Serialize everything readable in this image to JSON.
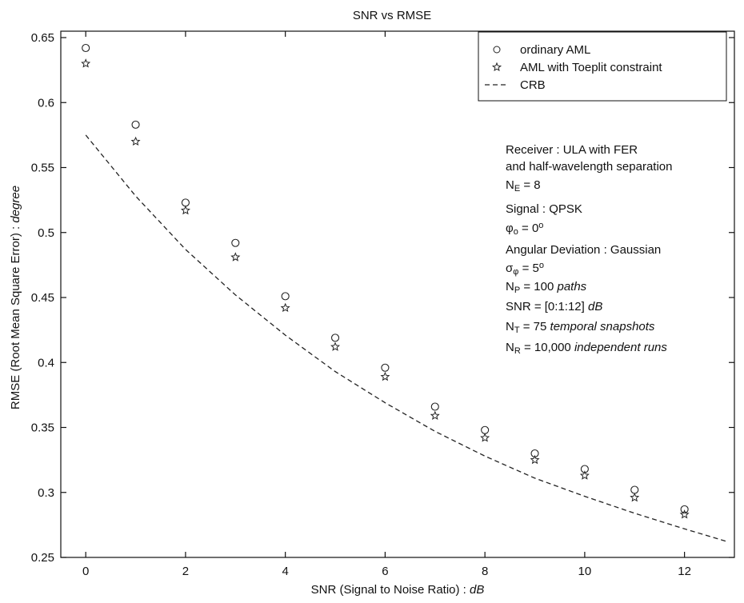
{
  "chart_data": {
    "type": "scatter",
    "title": "SNR vs RMSE",
    "x_label": [
      {
        "text": "SNR (Signal to Noise Ratio) : "
      },
      {
        "text": "dB",
        "style": "italic"
      }
    ],
    "y_label": [
      {
        "text": "RMSE (Root Mean Square Error) : "
      },
      {
        "text": "degree",
        "style": "italic"
      }
    ],
    "xlim": [
      -0.5,
      13
    ],
    "ylim": [
      0.25,
      0.65
    ],
    "xticks": [
      0,
      2,
      4,
      6,
      8,
      10,
      12
    ],
    "yticks": [
      0.25,
      0.3,
      0.35,
      0.4,
      0.45,
      0.5,
      0.55,
      0.6,
      0.65
    ],
    "grid": false,
    "legend": "upper right",
    "series": [
      {
        "name": "ordinary AML",
        "marker": "circle",
        "color": "#222",
        "x": [
          0,
          1,
          2,
          3,
          4,
          5,
          6,
          7,
          8,
          9,
          10,
          11,
          12
        ],
        "values": [
          0.642,
          0.583,
          0.523,
          0.492,
          0.451,
          0.419,
          0.396,
          0.366,
          0.348,
          0.33,
          0.318,
          0.302,
          0.287
        ]
      },
      {
        "name": "AML with Toeplit constraint",
        "marker": "star",
        "color": "#222",
        "x": [
          0,
          1,
          2,
          3,
          4,
          5,
          6,
          7,
          8,
          9,
          10,
          11,
          12
        ],
        "values": [
          0.63,
          0.57,
          0.517,
          0.481,
          0.442,
          0.412,
          0.389,
          0.359,
          0.342,
          0.325,
          0.313,
          0.296,
          0.283
        ]
      },
      {
        "name": "CRB",
        "marker": "dashed-line",
        "color": "#222",
        "x": [
          0,
          1,
          2,
          3,
          4,
          5,
          6,
          7,
          8,
          9,
          10,
          11,
          12,
          12.87
        ],
        "values": [
          0.575,
          0.528,
          0.487,
          0.452,
          0.421,
          0.393,
          0.369,
          0.347,
          0.328,
          0.311,
          0.297,
          0.284,
          0.272,
          0.262
        ]
      }
    ],
    "annotations": [
      [
        {
          "text": "Receiver : ULA with FER"
        }
      ],
      [
        {
          "text": "and half-wavelength separation"
        }
      ],
      [
        {
          "text": "N"
        },
        {
          "text": "E",
          "style": "sub"
        },
        {
          "text": " = 8"
        }
      ],
      [
        {
          "text": "Signal : QPSK"
        }
      ],
      [
        {
          "text": "φ"
        },
        {
          "text": "o",
          "style": "sub"
        },
        {
          "text": " = 0"
        },
        {
          "text": "o",
          "style": "sup"
        }
      ],
      [
        {
          "text": "Angular Deviation : Gaussian"
        }
      ],
      [
        {
          "text": "σ"
        },
        {
          "text": "φ",
          "style": "sub"
        },
        {
          "text": " = 5"
        },
        {
          "text": "o",
          "style": "sup"
        }
      ],
      [
        {
          "text": "N"
        },
        {
          "text": "P",
          "style": "sub"
        },
        {
          "text": " = 100 "
        },
        {
          "text": "paths",
          "style": "italic"
        }
      ],
      [
        {
          "text": "SNR = [0:1:12] "
        },
        {
          "text": "dB",
          "style": "italic"
        }
      ],
      [
        {
          "text": "N"
        },
        {
          "text": "T",
          "style": "sub"
        },
        {
          "text": " = 75 "
        },
        {
          "text": "temporal snapshots",
          "style": "italic"
        }
      ],
      [
        {
          "text": "N"
        },
        {
          "text": "R",
          "style": "sub"
        },
        {
          "text": " = 10,000 "
        },
        {
          "text": "independent runs",
          "style": "italic"
        }
      ]
    ]
  }
}
